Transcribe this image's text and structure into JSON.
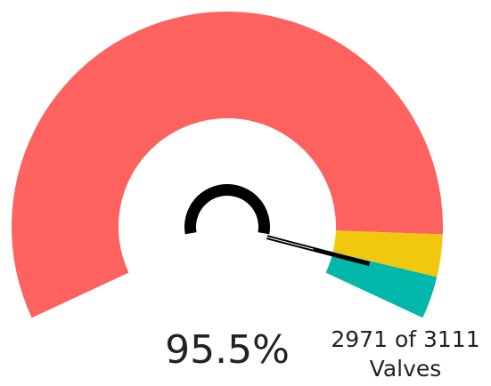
{
  "chart_data": {
    "type": "gauge",
    "value": 95.5,
    "value_label": "95.5%",
    "range": [
      0,
      100
    ],
    "bands": [
      {
        "from": 0,
        "to": 90,
        "color": "#fd625e"
      },
      {
        "from": 90,
        "to": 95,
        "color": "#f2c80f"
      },
      {
        "from": 95,
        "to": 100,
        "color": "#01b8aa"
      }
    ],
    "needle_color": "#000000",
    "detail_label": "2971 of 3111",
    "unit_label": "Valves"
  }
}
